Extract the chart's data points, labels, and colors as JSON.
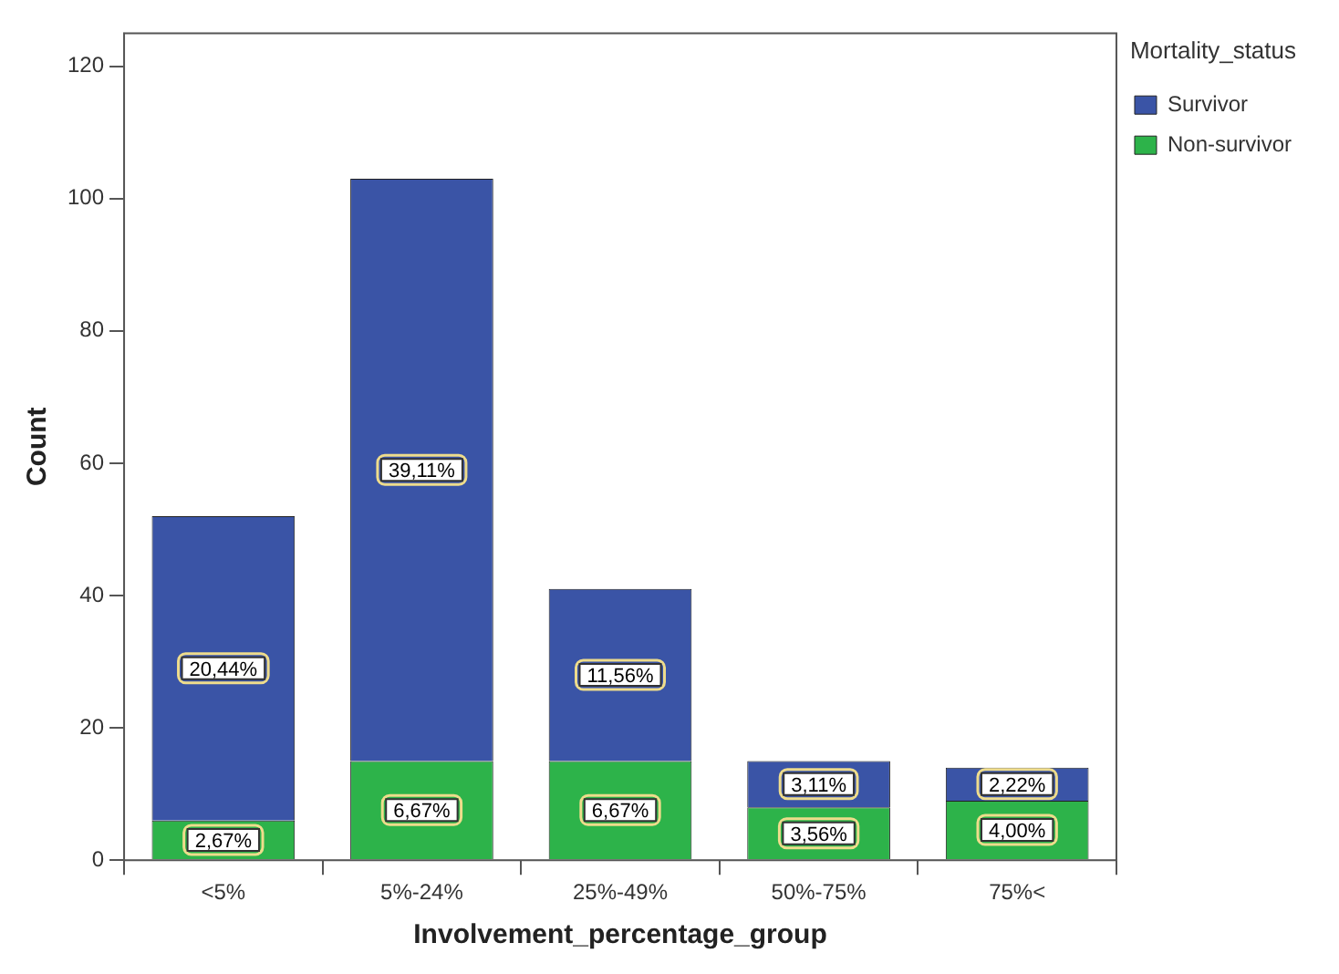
{
  "chart_data": {
    "type": "bar",
    "stacked": true,
    "xlabel": "Involvement_percentage_group",
    "ylabel": "Count",
    "legend_title": "Mortality_status",
    "legend": "top right",
    "grid": false,
    "categories": [
      "<5%",
      "5%-24%",
      "25%-49%",
      "50%-75%",
      "75%<"
    ],
    "ylim": [
      0,
      125
    ],
    "yticks": [
      0,
      20,
      40,
      60,
      80,
      100,
      120
    ],
    "series": [
      {
        "name": "Non-survivor",
        "color": "#2db34a",
        "values": [
          6,
          15,
          15,
          8,
          9
        ]
      },
      {
        "name": "Survivor",
        "color": "#3a54a6",
        "values": [
          46,
          88,
          26,
          7,
          5
        ]
      }
    ],
    "annotations": [
      "2,67%",
      "20,44%",
      "6,67%",
      "39,11%",
      "6,67%",
      "11,56%",
      "3,56%",
      "3,11%",
      "4,00%",
      "2,22%"
    ]
  }
}
